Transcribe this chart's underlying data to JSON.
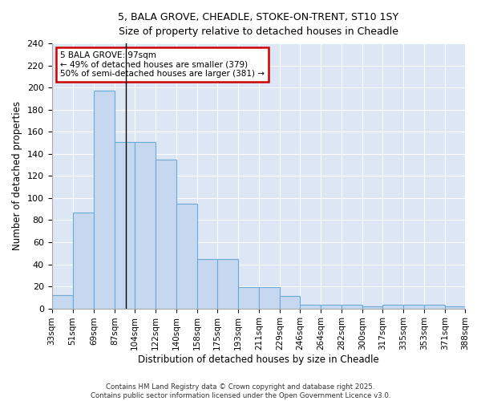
{
  "title_line1": "5, BALA GROVE, CHEADLE, STOKE-ON-TRENT, ST10 1SY",
  "title_line2": "Size of property relative to detached houses in Cheadle",
  "xlabel": "Distribution of detached houses by size in Cheadle",
  "ylabel": "Number of detached properties",
  "bin_edges": [
    33,
    51,
    69,
    87,
    104,
    122,
    140,
    158,
    175,
    193,
    211,
    229,
    246,
    264,
    282,
    300,
    317,
    335,
    353,
    371,
    388
  ],
  "bar_heights": [
    12,
    87,
    197,
    151,
    151,
    135,
    95,
    45,
    45,
    19,
    19,
    11,
    3,
    3,
    3,
    2,
    3,
    3,
    3,
    2
  ],
  "bar_color": "#c5d8f0",
  "bar_edge_color": "#6aaad4",
  "bar_edge_width": 0.8,
  "property_size": 97,
  "vline_color": "#000000",
  "annotation_text_line1": "5 BALA GROVE: 97sqm",
  "annotation_text_line2": "← 49% of detached houses are smaller (379)",
  "annotation_text_line3": "50% of semi-detached houses are larger (381) →",
  "annotation_box_color": "#ffffff",
  "annotation_box_edge": "#cc0000",
  "ylim": [
    0,
    240
  ],
  "yticks": [
    0,
    20,
    40,
    60,
    80,
    100,
    120,
    140,
    160,
    180,
    200,
    220,
    240
  ],
  "plot_bg_color": "#dce6f5",
  "figure_bg_color": "#ffffff",
  "grid_color": "#ffffff",
  "footer_line1": "Contains HM Land Registry data © Crown copyright and database right 2025.",
  "footer_line2": "Contains public sector information licensed under the Open Government Licence v3.0."
}
